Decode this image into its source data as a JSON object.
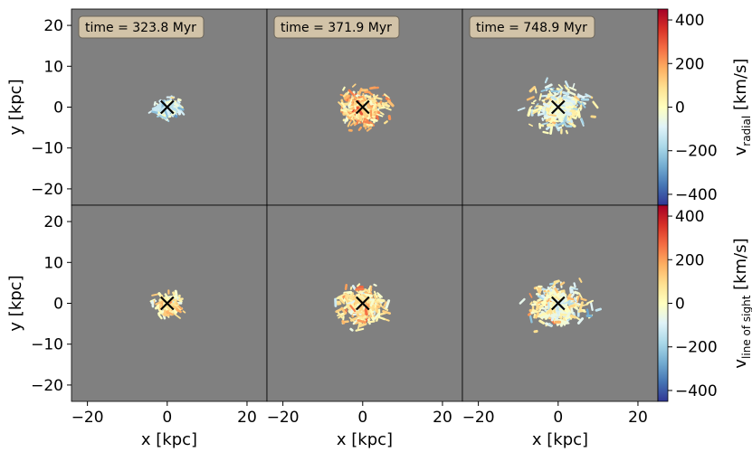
{
  "figure": {
    "type": "heatmap",
    "grid": [
      2,
      3
    ]
  },
  "chart_data": [
    {
      "type": "heatmap",
      "panel": "row1-col1",
      "annotation": "time = 323.8 Myr",
      "xlabel": "",
      "ylabel": "y [kpc]",
      "xlim": [
        -24,
        25
      ],
      "ylim": [
        -24,
        24
      ],
      "yticks": [
        -20,
        -10,
        0,
        10,
        20
      ],
      "xticks": [],
      "marker": {
        "label": "×",
        "x": 0,
        "y": 0
      },
      "quantity": "v_radial",
      "spread": 0.55,
      "bias": -120,
      "seed": 11
    },
    {
      "type": "heatmap",
      "panel": "row1-col2",
      "annotation": "time = 371.9 Myr",
      "xlabel": "",
      "ylabel": "",
      "xlim": [
        -24,
        25
      ],
      "ylim": [
        -24,
        24
      ],
      "yticks": [],
      "xticks": [],
      "marker": {
        "label": "×",
        "x": 0,
        "y": 0
      },
      "quantity": "v_radial",
      "spread": 1.0,
      "bias": 120,
      "seed": 23
    },
    {
      "type": "heatmap",
      "panel": "row1-col3",
      "annotation": "time = 748.9 Myr",
      "xlabel": "",
      "ylabel": "",
      "xlim": [
        -24,
        25
      ],
      "ylim": [
        -24,
        24
      ],
      "yticks": [],
      "xticks": [],
      "marker": {
        "label": "×",
        "x": 0,
        "y": 0
      },
      "quantity": "v_radial",
      "spread": 1.15,
      "bias": -40,
      "seed": 37
    },
    {
      "type": "heatmap",
      "panel": "row2-col1",
      "annotation": "",
      "xlabel": "x [kpc]",
      "ylabel": "y [kpc]",
      "xlim": [
        -24,
        25
      ],
      "ylim": [
        -24,
        24
      ],
      "yticks": [
        -20,
        -10,
        0,
        10,
        20
      ],
      "xticks": [
        -20,
        0,
        20
      ],
      "marker": {
        "label": "×",
        "x": 0,
        "y": 0
      },
      "quantity": "v_line_of_sight",
      "spread": 0.55,
      "bias": 60,
      "seed": 41
    },
    {
      "type": "heatmap",
      "panel": "row2-col2",
      "annotation": "",
      "xlabel": "x [kpc]",
      "ylabel": "",
      "xlim": [
        -24,
        25
      ],
      "ylim": [
        -24,
        24
      ],
      "yticks": [],
      "xticks": [
        -20,
        0,
        20
      ],
      "marker": {
        "label": "×",
        "x": 0,
        "y": 0
      },
      "quantity": "v_line_of_sight",
      "spread": 1.0,
      "bias": 80,
      "seed": 53
    },
    {
      "type": "heatmap",
      "panel": "row2-col3",
      "annotation": "",
      "xlabel": "x [kpc]",
      "ylabel": "",
      "xlim": [
        -24,
        25
      ],
      "ylim": [
        -24,
        24
      ],
      "yticks": [],
      "xticks": [
        -20,
        0,
        20
      ],
      "marker": {
        "label": "×",
        "x": 0,
        "y": 0
      },
      "quantity": "v_line_of_sight",
      "spread": 1.15,
      "bias": 0,
      "seed": 67
    }
  ],
  "colorbars": [
    {
      "quantity": "v_radial",
      "label_main": "v",
      "label_sub": "radial",
      "label_units": " [km/s]",
      "range": [
        -450,
        450
      ],
      "ticks": [
        400,
        200,
        0,
        -200,
        -400
      ],
      "tick_labels": [
        "400",
        "200",
        "0",
        "−200",
        "−400"
      ],
      "colormap": "RdYlBu_r"
    },
    {
      "quantity": "v_line_of_sight",
      "label_main": "v",
      "label_sub": "line of sight",
      "label_units": " [km/s]",
      "range": [
        -450,
        450
      ],
      "ticks": [
        400,
        200,
        0,
        -200,
        -400
      ],
      "tick_labels": [
        "400",
        "200",
        "0",
        "−200",
        "−400"
      ],
      "colormap": "RdYlBu_r"
    }
  ],
  "colors": {
    "background": "#808080",
    "annotation_box": "#d2c3a8",
    "annotation_border": "#6b6458",
    "marker": "#000000"
  }
}
